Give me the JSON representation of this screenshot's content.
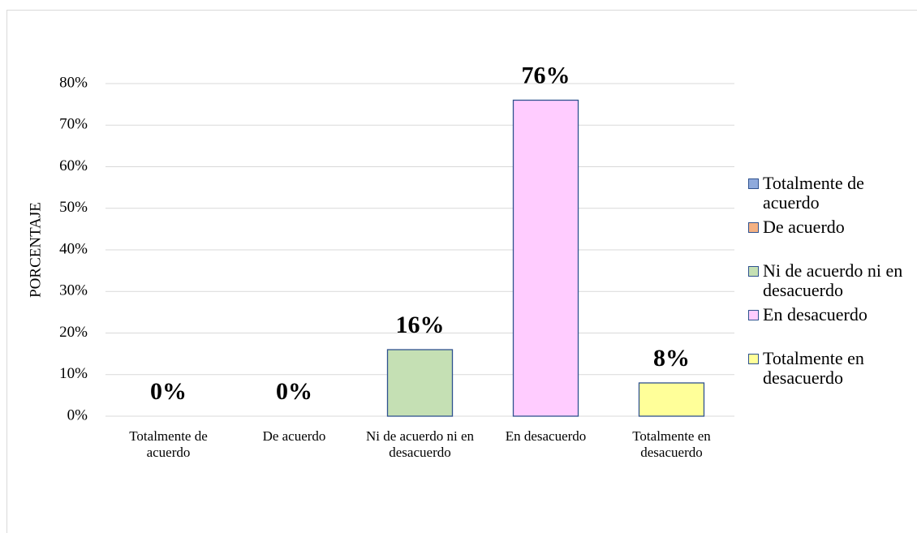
{
  "chart_data": {
    "type": "bar",
    "y_label": "PORCENTAJE",
    "categories": [
      "Totalmente de acuerdo",
      "De acuerdo",
      "Ni de acuerdo ni en desacuerdo",
      "En desacuerdo",
      "Totalmente en desacuerdo"
    ],
    "values": [
      0,
      0,
      16,
      76,
      8
    ],
    "value_labels": [
      "0%",
      "0%",
      "16%",
      "76%",
      "8%"
    ],
    "colors": [
      "#8faadc",
      "#f4b183",
      "#c5e0b4",
      "#ffccff",
      "#ffff99"
    ],
    "ylim": [
      0,
      80
    ],
    "yticks": [
      {
        "value": 0,
        "label": "0%"
      },
      {
        "value": 10,
        "label": "10%"
      },
      {
        "value": 20,
        "label": "20%"
      },
      {
        "value": 30,
        "label": "30%"
      },
      {
        "value": 40,
        "label": "40%"
      },
      {
        "value": 50,
        "label": "50%"
      },
      {
        "value": 60,
        "label": "60%"
      },
      {
        "value": 70,
        "label": "70%"
      },
      {
        "value": 80,
        "label": "80%"
      }
    ],
    "grid": true,
    "legend": "right"
  }
}
